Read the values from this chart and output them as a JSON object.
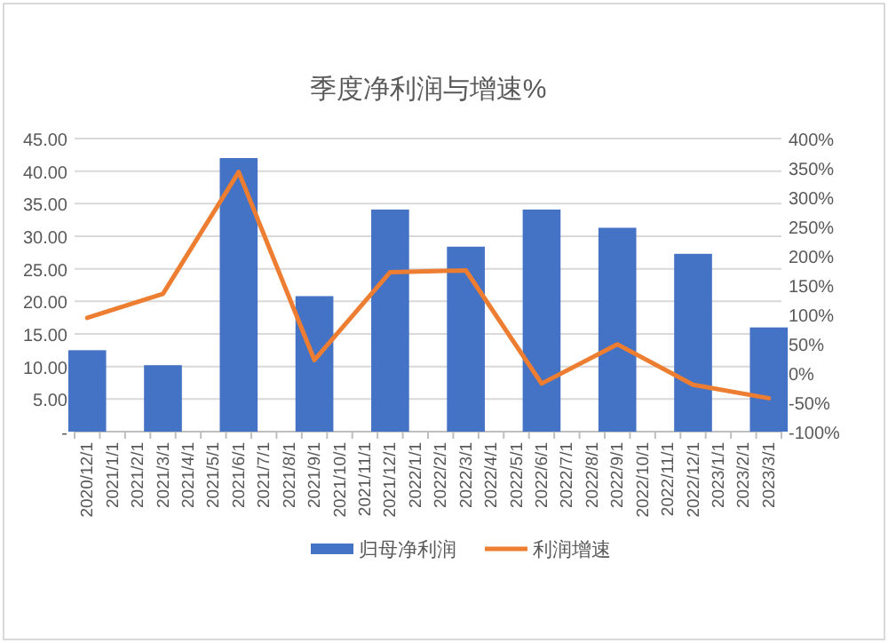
{
  "chart_data": {
    "type": "bar",
    "title": "季度净利润与增速%",
    "categories": [
      "2020/12/1",
      "2021/1/1",
      "2021/2/1",
      "2021/3/1",
      "2021/4/1",
      "2021/5/1",
      "2021/6/1",
      "2021/7/1",
      "2021/8/1",
      "2021/9/1",
      "2021/10/1",
      "2021/11/1",
      "2021/12/1",
      "2022/1/1",
      "2022/2/1",
      "2022/3/1",
      "2022/4/1",
      "2022/5/1",
      "2022/6/1",
      "2022/7/1",
      "2022/8/1",
      "2022/9/1",
      "2022/10/1",
      "2022/11/1",
      "2022/12/1",
      "2023/1/1",
      "2023/2/1",
      "2023/3/1"
    ],
    "series": [
      {
        "name": "归母净利润",
        "color": "#4472c4",
        "values": [
          12.5,
          null,
          null,
          10.2,
          null,
          null,
          42.0,
          null,
          null,
          20.8,
          null,
          null,
          34.1,
          null,
          null,
          28.4,
          null,
          null,
          34.1,
          null,
          null,
          31.3,
          null,
          null,
          27.3,
          null,
          null,
          16.0
        ]
      },
      {
        "name": "利润增速",
        "type": "line",
        "axis": "y2",
        "color": "#ed7d31",
        "values": [
          94,
          null,
          null,
          135,
          null,
          null,
          343,
          null,
          null,
          22,
          null,
          null,
          172,
          null,
          null,
          175,
          null,
          null,
          -18,
          null,
          null,
          49,
          null,
          null,
          -20,
          null,
          null,
          -43
        ]
      }
    ],
    "ylim": [
      0,
      45
    ],
    "yticks": [
      {
        "value": 0,
        "label": "-"
      },
      {
        "value": 5,
        "label": "5.00"
      },
      {
        "value": 10,
        "label": "10.00"
      },
      {
        "value": 15,
        "label": "15.00"
      },
      {
        "value": 20,
        "label": "20.00"
      },
      {
        "value": 25,
        "label": "25.00"
      },
      {
        "value": 30,
        "label": "30.00"
      },
      {
        "value": 35,
        "label": "35.00"
      },
      {
        "value": 40,
        "label": "40.00"
      },
      {
        "value": 45,
        "label": "45.00"
      }
    ],
    "y2lim": [
      -100,
      400
    ],
    "y2ticks": [
      {
        "value": -100,
        "label": "-100%"
      },
      {
        "value": -50,
        "label": "-50%"
      },
      {
        "value": 0,
        "label": "0%"
      },
      {
        "value": 50,
        "label": "50%"
      },
      {
        "value": 100,
        "label": "100%"
      },
      {
        "value": 150,
        "label": "150%"
      },
      {
        "value": 200,
        "label": "200%"
      },
      {
        "value": 250,
        "label": "250%"
      },
      {
        "value": 300,
        "label": "300%"
      },
      {
        "value": 350,
        "label": "350%"
      },
      {
        "value": 400,
        "label": "400%"
      }
    ],
    "grid": "y",
    "legend": "bottom"
  }
}
